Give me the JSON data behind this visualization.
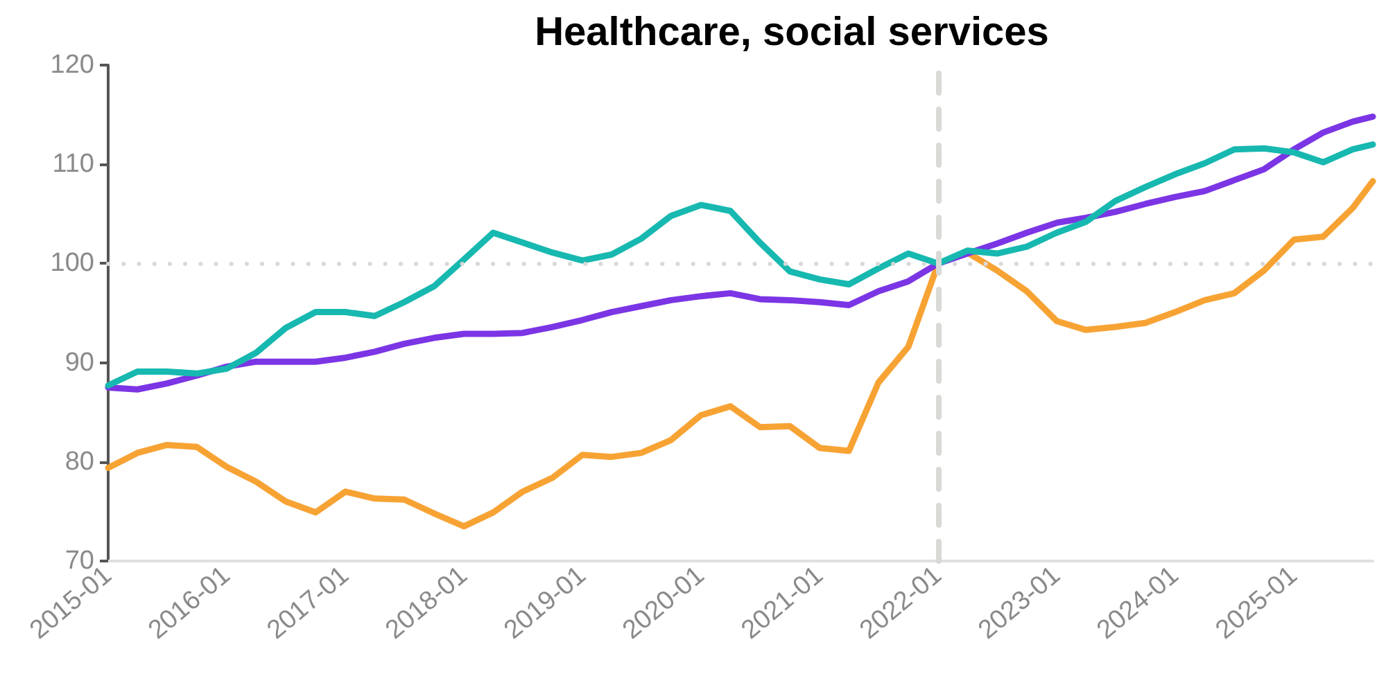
{
  "chart_data": {
    "type": "line",
    "title": "Healthcare, social services",
    "x": [
      "2015-01",
      "2015-04",
      "2015-07",
      "2015-10",
      "2016-01",
      "2016-04",
      "2016-07",
      "2016-10",
      "2017-01",
      "2017-04",
      "2017-07",
      "2017-10",
      "2018-01",
      "2018-04",
      "2018-07",
      "2018-10",
      "2019-01",
      "2019-04",
      "2019-07",
      "2019-10",
      "2020-01",
      "2020-04",
      "2020-07",
      "2020-10",
      "2021-01",
      "2021-04",
      "2021-07",
      "2021-10",
      "2022-01",
      "2022-04",
      "2022-07",
      "2022-10",
      "2023-01",
      "2023-04",
      "2023-07",
      "2023-10",
      "2024-01",
      "2024-04",
      "2024-07",
      "2024-10",
      "2025-01",
      "2025-04",
      "2025-07",
      "2025-09"
    ],
    "series": [
      {
        "color": "#f7a334",
        "values": [
          79.4,
          80.9,
          81.7,
          81.5,
          79.5,
          78,
          76,
          74.9,
          77,
          76.3,
          76.2,
          74.8,
          73.5,
          74.9,
          77,
          78.4,
          80.7,
          80.5,
          80.9,
          82.2,
          84.7,
          85.6,
          83.5,
          83.6,
          81.4,
          81.1,
          88,
          91.6,
          100,
          101.1,
          99.3,
          97.2,
          94.2,
          93.3,
          93.6,
          94,
          95.1,
          96.3,
          97,
          99.3,
          102.4,
          102.7,
          105.6,
          108.3
        ]
      },
      {
        "color": "#7b35e5",
        "values": [
          87.5,
          87.3,
          87.9,
          88.7,
          89.6,
          90.1,
          90.1,
          90.1,
          90.5,
          91.1,
          91.9,
          92.5,
          92.9,
          92.9,
          93,
          93.6,
          94.3,
          95.1,
          95.7,
          96.3,
          96.7,
          97,
          96.4,
          96.3,
          96.1,
          95.8,
          97.2,
          98.2,
          100,
          101,
          102,
          103.1,
          104.1,
          104.6,
          105.2,
          106,
          106.7,
          107.3,
          108.4,
          109.5,
          111.5,
          113.2,
          114.3,
          114.8
        ]
      },
      {
        "color": "#17b8b0",
        "values": [
          87.7,
          89.1,
          89.1,
          88.9,
          89.4,
          91,
          93.5,
          95.1,
          95.1,
          94.7,
          96.1,
          97.7,
          100.4,
          103.1,
          102.1,
          101.1,
          100.3,
          100.9,
          102.5,
          104.8,
          105.9,
          105.3,
          102.1,
          99.2,
          98.4,
          97.9,
          99.5,
          101,
          100,
          101.3,
          101,
          101.7,
          103.1,
          104.2,
          106.3,
          107.7,
          109,
          110.1,
          111.5,
          111.6,
          111.2,
          110.2,
          111.5,
          112
        ]
      }
    ],
    "xlim": [
      "2015-01",
      "2025-09"
    ],
    "xticks": [
      "2015-01",
      "2016-01",
      "2017-01",
      "2018-01",
      "2019-01",
      "2020-01",
      "2021-01",
      "2022-01",
      "2023-01",
      "2024-01",
      "2025-01"
    ],
    "ylim": [
      70,
      120
    ],
    "yticks": [
      70,
      80,
      90,
      100,
      110,
      120
    ],
    "ref_lines": [
      {
        "axis": "y",
        "value": 100,
        "color": "#d9d9d9",
        "line_style": "dotted"
      },
      {
        "axis": "x",
        "value": "2022-01",
        "color": "#d9d9d6",
        "line_style": "dashed"
      }
    ],
    "grid": false,
    "marker": "none",
    "line_style": "solid"
  }
}
